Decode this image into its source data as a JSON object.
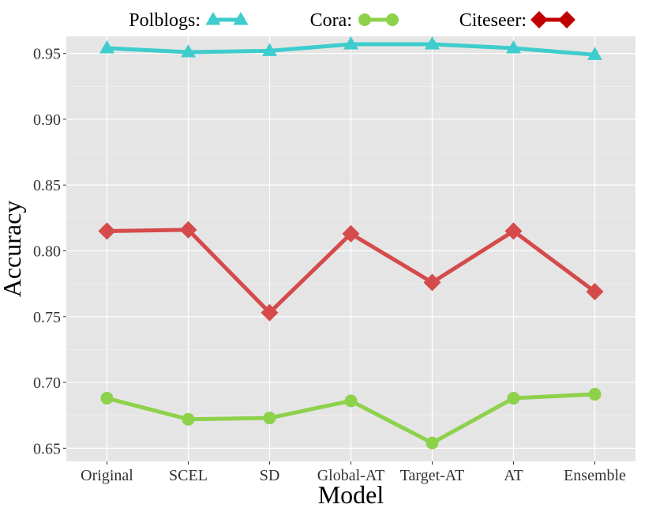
{
  "chart_data": {
    "type": "line",
    "title": "",
    "xlabel": "Model",
    "ylabel": "Accuracy",
    "categories": [
      "Original",
      "SCEL",
      "SD",
      "Global-AT",
      "Target-AT",
      "AT",
      "Ensemble"
    ],
    "ylim": [
      0.64,
      0.963
    ],
    "yticks": [
      0.65,
      0.7,
      0.75,
      0.8,
      0.85,
      0.9,
      0.95
    ],
    "ytick_labels": [
      "0.65",
      "0.70",
      "0.75",
      "0.80",
      "0.85",
      "0.90",
      "0.95"
    ],
    "grid": true,
    "legend_position": "top",
    "series": [
      {
        "name": "Polblogs",
        "legend_label": "Polblogs:",
        "marker": "triangle",
        "color": "#3ECCCC",
        "legend_color": "#3ECCCC",
        "values": [
          0.954,
          0.951,
          0.952,
          0.957,
          0.957,
          0.954,
          0.949
        ]
      },
      {
        "name": "Cora",
        "legend_label": "Cora:",
        "marker": "circle",
        "color": "#8ED14B",
        "legend_color": "#8ED14B",
        "values": [
          0.688,
          0.672,
          0.673,
          0.686,
          0.654,
          0.688,
          0.691
        ]
      },
      {
        "name": "Citeseer",
        "legend_label": "Citeseer:",
        "marker": "diamond",
        "color": "#D54A4A",
        "legend_color": "#C00000",
        "values": [
          0.815,
          0.816,
          0.753,
          0.813,
          0.776,
          0.815,
          0.769
        ]
      }
    ]
  }
}
